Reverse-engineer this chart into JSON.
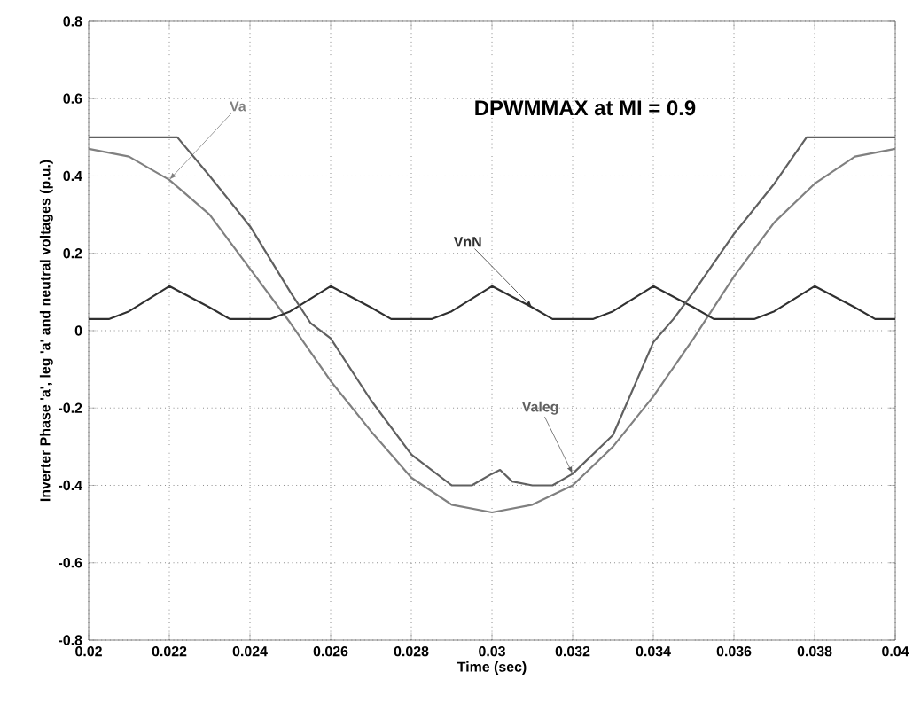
{
  "chart_data": {
    "type": "line",
    "title": "DPWMMAX at MI = 0.9",
    "xlabel": "Time (sec)",
    "ylabel": "Inverter Phase 'a', leg 'a' and neutral voltages (p.u.)",
    "xlim": [
      0.02,
      0.04
    ],
    "ylim": [
      -0.8,
      0.8
    ],
    "xticks": [
      0.02,
      0.022,
      0.024,
      0.026,
      0.028,
      0.03,
      0.032,
      0.034,
      0.036,
      0.038,
      0.04
    ],
    "yticks": [
      -0.8,
      -0.6,
      -0.4,
      -0.2,
      0,
      0.2,
      0.4,
      0.6,
      0.8
    ],
    "grid": true,
    "marker": "none",
    "line_style": "solid",
    "series": [
      {
        "name": "Va",
        "color": "#808080",
        "x": [
          0.02,
          0.021,
          0.022,
          0.023,
          0.024,
          0.025,
          0.026,
          0.027,
          0.028,
          0.029,
          0.03,
          0.031,
          0.032,
          0.033,
          0.034,
          0.035,
          0.036,
          0.037,
          0.038,
          0.039,
          0.04
        ],
        "values": [
          0.47,
          0.45,
          0.39,
          0.3,
          0.16,
          0.02,
          -0.13,
          -0.26,
          -0.38,
          -0.45,
          -0.47,
          -0.45,
          -0.4,
          -0.3,
          -0.17,
          -0.02,
          0.14,
          0.28,
          0.38,
          0.45,
          0.47
        ]
      },
      {
        "name": "VnN",
        "color": "#303030",
        "x": [
          0.02,
          0.0205,
          0.021,
          0.022,
          0.023,
          0.0235,
          0.0245,
          0.025,
          0.026,
          0.027,
          0.0275,
          0.0285,
          0.029,
          0.03,
          0.031,
          0.0315,
          0.0325,
          0.033,
          0.034,
          0.035,
          0.0355,
          0.0365,
          0.037,
          0.038,
          0.039,
          0.0395,
          0.04
        ],
        "values": [
          0.03,
          0.03,
          0.05,
          0.115,
          0.06,
          0.03,
          0.03,
          0.05,
          0.115,
          0.06,
          0.03,
          0.03,
          0.05,
          0.115,
          0.06,
          0.03,
          0.03,
          0.05,
          0.115,
          0.06,
          0.03,
          0.03,
          0.05,
          0.115,
          0.06,
          0.03,
          0.03
        ]
      },
      {
        "name": "Valeg",
        "color": "#606060",
        "x": [
          0.02,
          0.0222,
          0.023,
          0.024,
          0.025,
          0.0255,
          0.026,
          0.027,
          0.028,
          0.029,
          0.0295,
          0.03,
          0.0302,
          0.0305,
          0.031,
          0.0315,
          0.032,
          0.033,
          0.034,
          0.0345,
          0.035,
          0.036,
          0.037,
          0.0378,
          0.04
        ],
        "values": [
          0.5,
          0.5,
          0.4,
          0.27,
          0.1,
          0.02,
          -0.02,
          -0.18,
          -0.32,
          -0.4,
          -0.4,
          -0.37,
          -0.36,
          -0.39,
          -0.4,
          -0.4,
          -0.37,
          -0.27,
          -0.03,
          0.03,
          0.1,
          0.25,
          0.38,
          0.5,
          0.5
        ]
      }
    ]
  }
}
